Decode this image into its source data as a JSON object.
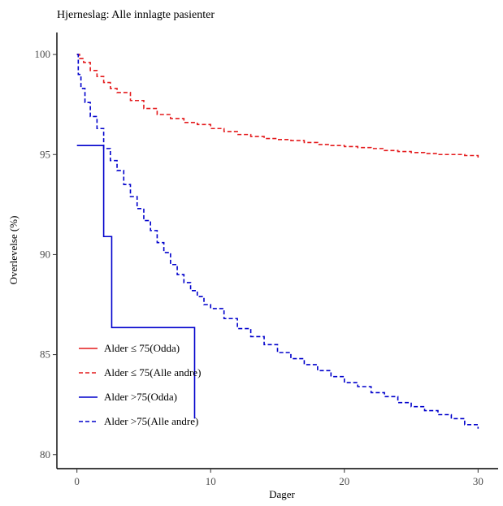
{
  "chart_data": {
    "type": "line",
    "title": "Hjerneslag: Alle innlagte pasienter",
    "xlabel": "Dager",
    "ylabel": "Overlevelse (%)",
    "xlim": [
      -1.5,
      31.5
    ],
    "ylim": [
      79.3,
      101.1
    ],
    "xticks": [
      0,
      10,
      20,
      30
    ],
    "yticks": [
      80,
      85,
      90,
      95,
      100
    ],
    "grid": false,
    "legend_position": "bottom-left",
    "series": [
      {
        "name": "Alder ≤ 75(Odda)",
        "color": "#e41a1c",
        "dash": "solid",
        "step": true,
        "points": []
      },
      {
        "name": "Alder ≤ 75(Alle andre)",
        "color": "#e41a1c",
        "dash": "dashed",
        "step": true,
        "points": [
          [
            0,
            100
          ],
          [
            0.2,
            99.8
          ],
          [
            0.5,
            99.6
          ],
          [
            1,
            99.2
          ],
          [
            1.5,
            98.9
          ],
          [
            2,
            98.6
          ],
          [
            2.5,
            98.3
          ],
          [
            3,
            98.1
          ],
          [
            4,
            97.7
          ],
          [
            5,
            97.3
          ],
          [
            6,
            97.0
          ],
          [
            7,
            96.8
          ],
          [
            8,
            96.6
          ],
          [
            9,
            96.5
          ],
          [
            10,
            96.3
          ],
          [
            11,
            96.15
          ],
          [
            12,
            96.0
          ],
          [
            13,
            95.9
          ],
          [
            14,
            95.8
          ],
          [
            15,
            95.75
          ],
          [
            16,
            95.7
          ],
          [
            17,
            95.6
          ],
          [
            18,
            95.5
          ],
          [
            19,
            95.45
          ],
          [
            20,
            95.4
          ],
          [
            21,
            95.35
          ],
          [
            22,
            95.3
          ],
          [
            23,
            95.2
          ],
          [
            24,
            95.15
          ],
          [
            25,
            95.1
          ],
          [
            26,
            95.05
          ],
          [
            27,
            95.0
          ],
          [
            28,
            95.0
          ],
          [
            29,
            94.95
          ],
          [
            30,
            94.85
          ]
        ]
      },
      {
        "name": "Alder >75(Odda)",
        "color": "#0000cc",
        "dash": "solid",
        "step": true,
        "points": [
          [
            0,
            95.45
          ],
          [
            2,
            95.45
          ],
          [
            2,
            90.9
          ],
          [
            2.6,
            90.9
          ],
          [
            2.6,
            86.35
          ],
          [
            8.8,
            86.35
          ],
          [
            8.8,
            81.8
          ]
        ]
      },
      {
        "name": "Alder >75(Alle andre)",
        "color": "#0000cc",
        "dash": "dashed",
        "step": true,
        "points": [
          [
            0,
            100
          ],
          [
            0.1,
            99.0
          ],
          [
            0.3,
            98.3
          ],
          [
            0.6,
            97.6
          ],
          [
            1,
            96.9
          ],
          [
            1.5,
            96.3
          ],
          [
            2,
            95.3
          ],
          [
            2.5,
            94.7
          ],
          [
            3,
            94.2
          ],
          [
            3.5,
            93.5
          ],
          [
            4,
            92.9
          ],
          [
            4.5,
            92.3
          ],
          [
            5,
            91.7
          ],
          [
            5.5,
            91.2
          ],
          [
            6,
            90.6
          ],
          [
            6.5,
            90.1
          ],
          [
            7,
            89.5
          ],
          [
            7.5,
            89.0
          ],
          [
            8,
            88.6
          ],
          [
            8.5,
            88.2
          ],
          [
            9,
            87.9
          ],
          [
            9.5,
            87.5
          ],
          [
            10,
            87.3
          ],
          [
            11,
            86.8
          ],
          [
            12,
            86.3
          ],
          [
            13,
            85.9
          ],
          [
            14,
            85.5
          ],
          [
            15,
            85.1
          ],
          [
            16,
            84.8
          ],
          [
            17,
            84.5
          ],
          [
            18,
            84.2
          ],
          [
            19,
            83.9
          ],
          [
            20,
            83.6
          ],
          [
            21,
            83.4
          ],
          [
            22,
            83.1
          ],
          [
            23,
            82.9
          ],
          [
            24,
            82.6
          ],
          [
            25,
            82.4
          ],
          [
            26,
            82.2
          ],
          [
            27,
            82.0
          ],
          [
            28,
            81.8
          ],
          [
            29,
            81.5
          ],
          [
            30,
            81.3
          ]
        ]
      }
    ]
  }
}
